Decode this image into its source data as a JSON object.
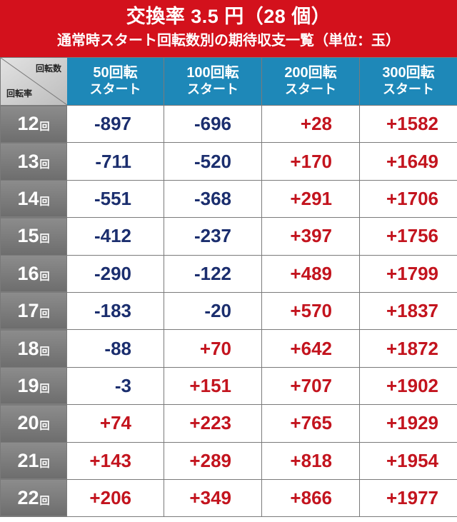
{
  "title": "交換率 3.5 円（28 個）",
  "subtitle": "通常時スタート回転数別の期待収支一覧（単位：玉）",
  "corner": {
    "top_label": "回転数",
    "bottom_label": "回転率"
  },
  "columns": [
    {
      "line1": "50回転",
      "line2": "スタート"
    },
    {
      "line1": "100回転",
      "line2": "スタート"
    },
    {
      "line1": "200回転",
      "line2": "スタート"
    },
    {
      "line1": "300回転",
      "line2": "スタート"
    }
  ],
  "row_unit": "回",
  "rows": [
    {
      "rate": "12",
      "values": [
        "-897",
        "-696",
        "+28",
        "+1582"
      ]
    },
    {
      "rate": "13",
      "values": [
        "-711",
        "-520",
        "+170",
        "+1649"
      ]
    },
    {
      "rate": "14",
      "values": [
        "-551",
        "-368",
        "+291",
        "+1706"
      ]
    },
    {
      "rate": "15",
      "values": [
        "-412",
        "-237",
        "+397",
        "+1756"
      ]
    },
    {
      "rate": "16",
      "values": [
        "-290",
        "-122",
        "+489",
        "+1799"
      ]
    },
    {
      "rate": "17",
      "values": [
        "-183",
        "-20",
        "+570",
        "+1837"
      ]
    },
    {
      "rate": "18",
      "values": [
        "-88",
        "+70",
        "+642",
        "+1872"
      ]
    },
    {
      "rate": "19",
      "values": [
        "-3",
        "+151",
        "+707",
        "+1902"
      ]
    },
    {
      "rate": "20",
      "values": [
        "+74",
        "+223",
        "+765",
        "+1929"
      ]
    },
    {
      "rate": "21",
      "values": [
        "+143",
        "+289",
        "+818",
        "+1954"
      ]
    },
    {
      "rate": "22",
      "values": [
        "+206",
        "+349",
        "+866",
        "+1977"
      ]
    }
  ],
  "colors": {
    "title_bg": "#d3111c",
    "header_bg": "#1e88b8",
    "row_header_bg": "#7d7d7d",
    "negative": "#1b2e6e",
    "positive": "#c3141e"
  }
}
